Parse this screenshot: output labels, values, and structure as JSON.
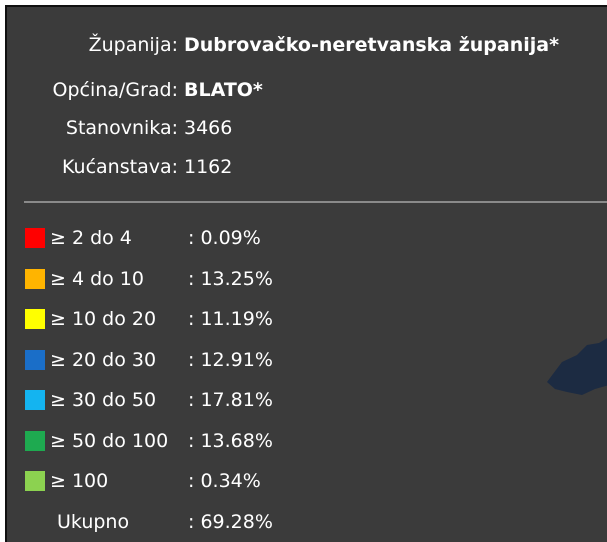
{
  "info": [
    {
      "label": "Županija:",
      "value": "Dubrovačko-neretvanska županija*",
      "bold": true
    },
    {
      "label": "Općina/Grad:",
      "value": "BLATO*",
      "bold": true
    },
    {
      "label": "Stanovnika:",
      "value": "3466",
      "bold": false
    },
    {
      "label": "Kućanstava:",
      "value": "1162",
      "bold": false
    }
  ],
  "legend": [
    {
      "color": "#ff0000",
      "range": "≥ 2 do 4",
      "value": ": 0.09%"
    },
    {
      "color": "#ffb400",
      "range": "≥ 4 do 10",
      "value": ": 13.25%"
    },
    {
      "color": "#ffff00",
      "range": "≥ 10 do 20",
      "value": ": 11.19%"
    },
    {
      "color": "#1a6ec8",
      "range": "≥ 20 do 30",
      "value": ": 12.91%"
    },
    {
      "color": "#14b4f0",
      "range": "≥ 30 do 50",
      "value": ": 17.81%"
    },
    {
      "color": "#1eaa50",
      "range": "≥ 50 do 100",
      "value": ": 13.68%"
    },
    {
      "color": "#8cd250",
      "range": "≥ 100",
      "value": ": 0.34%"
    }
  ],
  "total": {
    "label": "Ukupno",
    "value": ": 69.28%"
  }
}
